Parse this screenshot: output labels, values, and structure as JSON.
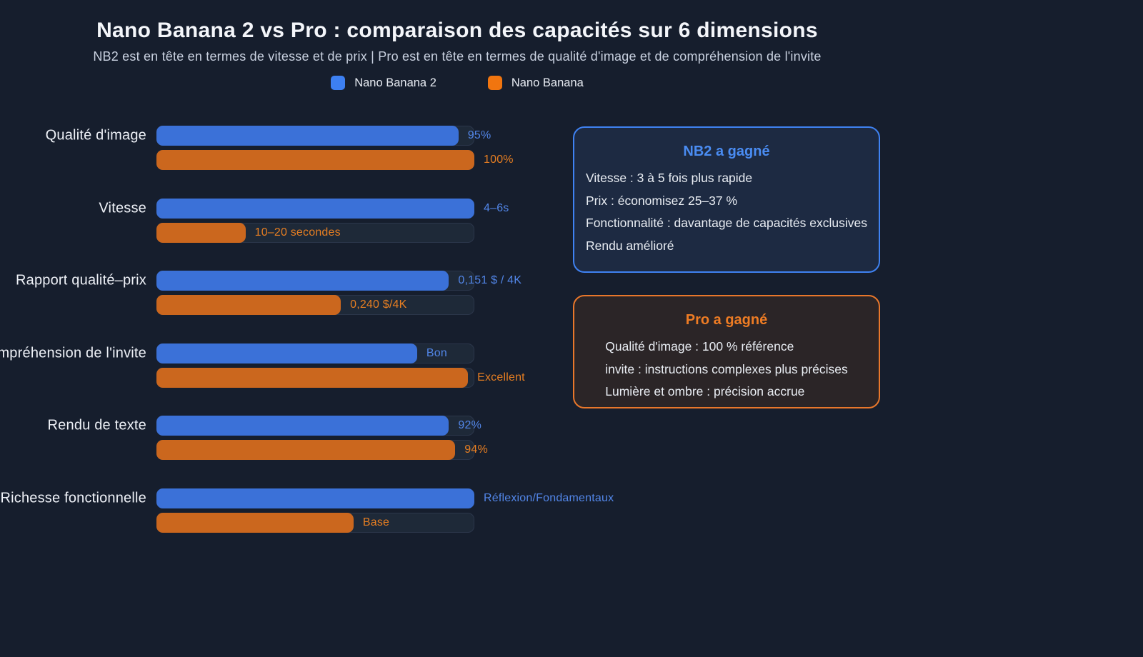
{
  "chart_data": {
    "type": "bar",
    "orientation": "horizontal",
    "title": "Nano Banana 2 vs Pro : comparaison des capacités sur 6 dimensions",
    "subtitle": "NB2 est en tête en termes de vitesse et de prix | Pro est en tête en termes de qualité d'image et de compréhension de l'invite",
    "legend_position": "top",
    "grid": false,
    "xlim": [
      0,
      100
    ],
    "categories": [
      "Qualité d'image",
      "Vitesse",
      "Rapport qualité–prix",
      "Compréhension de l'invite",
      "Rendu de texte",
      "Richesse fonctionnelle"
    ],
    "series": [
      {
        "name": "Nano Banana 2",
        "color": "#3b71d8",
        "legend_color": "#3d80f2",
        "label_color": "#5286e8",
        "values_pct": [
          95,
          100,
          92,
          82,
          92,
          100
        ],
        "labels": [
          "95%",
          "4–6s",
          "0,151 $ / 4K",
          "Bon",
          "92%",
          "Réflexion/Fondamentaux"
        ]
      },
      {
        "name": "Nano Banana",
        "color": "#cb671e",
        "legend_color": "#f1750f",
        "label_color": "#e67e22",
        "values_pct": [
          100,
          28,
          58,
          98,
          94,
          62
        ],
        "labels": [
          "100%",
          "10–20 secondes",
          "0,240 $/4K",
          "Excellent",
          "94%",
          "Base"
        ]
      }
    ]
  },
  "callouts": {
    "nb2": {
      "title": "NB2 a gagné",
      "accent": "#4a8cf2",
      "lines": [
        "Vitesse : 3 à 5 fois plus rapide",
        "Prix : économisez 25–37 %",
        "Fonctionnalité : davantage de capacités exclusives",
        "Rendu amélioré"
      ]
    },
    "pro": {
      "title": "Pro a gagné",
      "accent": "#ee7c24",
      "lines": [
        "Qualité d'image : 100 % référence",
        "invite : instructions complexes plus précises",
        "Lumière et ombre : précision accrue"
      ]
    }
  },
  "colors": {
    "background": "#161e2d",
    "track": "#1e2938",
    "track_border": "#2b364a",
    "title_text": "#f4f6fa",
    "subtitle_text": "#c9d1e0",
    "category_text": "#eef1f7"
  }
}
